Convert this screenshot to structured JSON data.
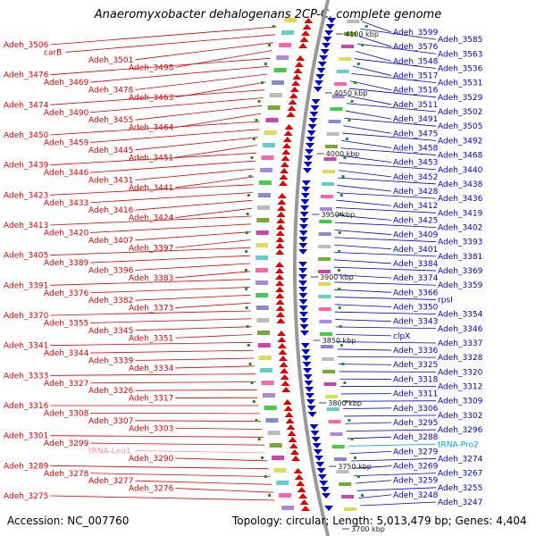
{
  "title": "Anaeromyxobacter dehalogenans 2CP-C, complete genome",
  "accession_text": "Accession: NC_007760",
  "topology_text": "Topology: circular; Length: 5,013,479 bp; Genes: 4,404",
  "colors": {
    "forward": "#e00000",
    "reverse": "#0000cc",
    "trna": "#ff88aa",
    "trna_rev": "#00aacc",
    "backbone": "#999999",
    "tick": "#2a8a2a"
  },
  "scale_ticks": [
    "4100 kbp",
    "4050 kbp",
    "4000 kbp",
    "3950 kbp",
    "3900 kbp",
    "3850 kbp",
    "3800 kbp",
    "3750 kbp",
    "3700 kbp"
  ],
  "forward_labels": [
    "Adeh_3506",
    "carB",
    "Adeh_3501",
    "Adeh_3498",
    "Adeh_3476",
    "Adeh_3469",
    "Adeh_3478",
    "Adeh_3463",
    "Adeh_3474",
    "Adeh_3490",
    "Adeh_3455",
    "Adeh_3464",
    "Adeh_3450",
    "Adeh_3459",
    "Adeh_3445",
    "Adeh_3451",
    "Adeh_3439",
    "Adeh_3446",
    "Adeh_3431",
    "Adeh_3441",
    "Adeh_3423",
    "Adeh_3433",
    "Adeh_3416",
    "Adeh_3424",
    "Adeh_3413",
    "Adeh_3420",
    "Adeh_3407",
    "Adeh_3397",
    "Adeh_3405",
    "Adeh_3389",
    "Adeh_3396",
    "Adeh_3383",
    "Adeh_3391",
    "Adeh_3376",
    "Adeh_3382",
    "Adeh_3373",
    "Adeh_3370",
    "Adeh_3355",
    "Adeh_3345",
    "Adeh_3351",
    "Adeh_3341",
    "Adeh_3344",
    "Adeh_3339",
    "Adeh_3334",
    "Adeh_3333",
    "Adeh_3327",
    "Adeh_3326",
    "Adeh_3317",
    "Adeh_3316",
    "Adeh_3308",
    "Adeh_3307",
    "Adeh_3303",
    "Adeh_3301",
    "Adeh_3299",
    "tRNA-Leu1",
    "Adeh_3290",
    "Adeh_3289",
    "Adeh_3278",
    "Adeh_3277",
    "Adeh_3276",
    "Adeh_3275"
  ],
  "reverse_labels": [
    "Adeh_3599",
    "Adeh_3585",
    "Adeh_3576",
    "Adeh_3563",
    "Adeh_3548",
    "Adeh_3536",
    "Adeh_3517",
    "Adeh_3531",
    "Adeh_3516",
    "Adeh_3529",
    "Adeh_3511",
    "Adeh_3502",
    "Adeh_3491",
    "Adeh_3505",
    "Adeh_3475",
    "Adeh_3492",
    "Adeh_3458",
    "Adeh_3468",
    "Adeh_3453",
    "Adeh_3440",
    "Adeh_3452",
    "Adeh_3438",
    "Adeh_3428",
    "Adeh_3436",
    "Adeh_3412",
    "Adeh_3419",
    "Adeh_3425",
    "Adeh_3402",
    "Adeh_3409",
    "Adeh_3393",
    "Adeh_3401",
    "Adeh_3381",
    "Adeh_3384",
    "Adeh_3369",
    "Adeh_3374",
    "Adeh_3359",
    "Adeh_3366",
    "rpsI",
    "Adeh_3350",
    "Adeh_3354",
    "Adeh_3343",
    "Adeh_3346",
    "clpX",
    "Adeh_3337",
    "Adeh_3336",
    "Adeh_3328",
    "Adeh_3325",
    "Adeh_3320",
    "Adeh_3318",
    "Adeh_3312",
    "Adeh_3311",
    "Adeh_3309",
    "Adeh_3306",
    "Adeh_3302",
    "Adeh_3295",
    "Adeh_3296",
    "Adeh_3288",
    "tRNA-Pro2",
    "Adeh_3279",
    "Adeh_3274",
    "Adeh_3269",
    "Adeh_3267",
    "Adeh_3259",
    "Adeh_3255",
    "Adeh_3248",
    "Adeh_3247"
  ]
}
